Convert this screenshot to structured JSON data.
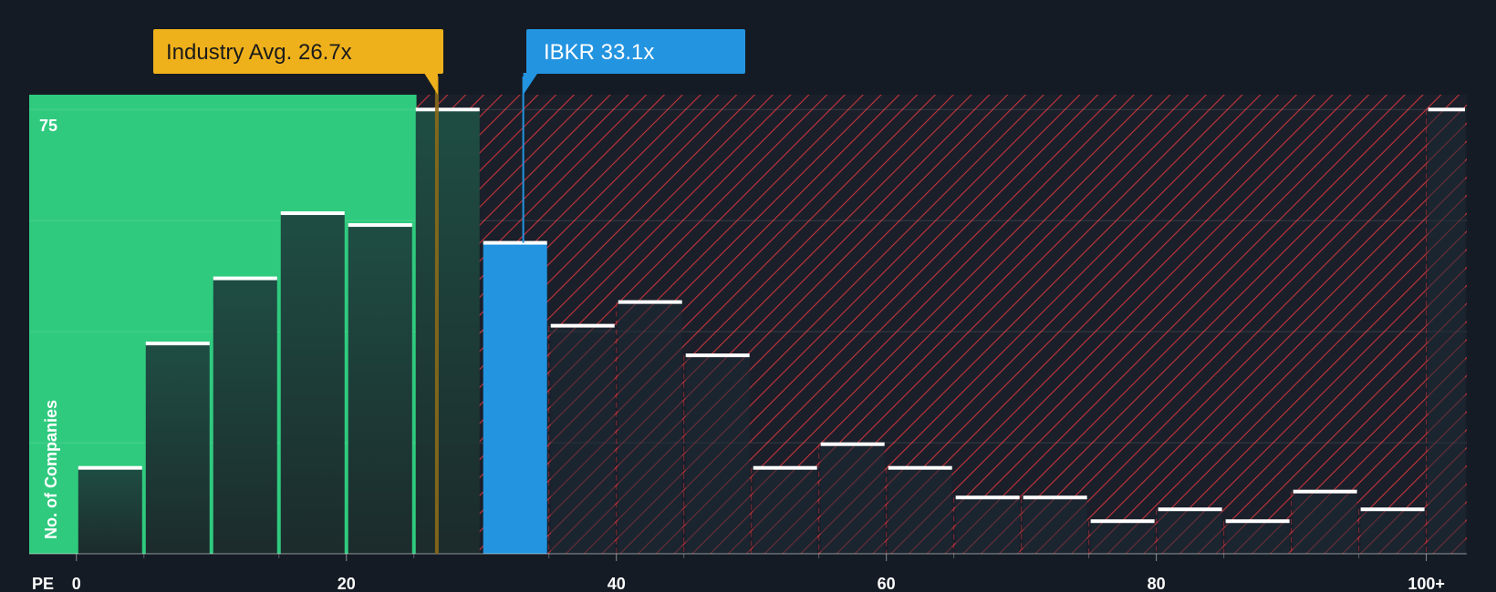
{
  "chart_data": {
    "type": "bar",
    "xlabel": "PE",
    "ylabel": "No. of Companies",
    "x_tick_labels": [
      "0",
      "20",
      "40",
      "60",
      "80",
      "100+"
    ],
    "x_ticks": [
      0,
      20,
      40,
      60,
      80,
      100
    ],
    "xlim": [
      -3.5,
      103
    ],
    "y_tick_label": "75",
    "y_ticks": [
      0,
      18.75,
      37.5,
      56.25,
      75
    ],
    "ylim": [
      0,
      77.5
    ],
    "bins": [
      {
        "x0": 0,
        "x1": 5,
        "value": 14.5
      },
      {
        "x0": 5,
        "x1": 10,
        "value": 35.5
      },
      {
        "x0": 10,
        "x1": 15,
        "value": 46.5
      },
      {
        "x0": 15,
        "x1": 20,
        "value": 57.5
      },
      {
        "x0": 20,
        "x1": 25,
        "value": 55.5
      },
      {
        "x0": 25,
        "x1": 30,
        "value": 75
      },
      {
        "x0": 30,
        "x1": 35,
        "value": 52.5,
        "highlight": true
      },
      {
        "x0": 35,
        "x1": 40,
        "value": 38.5
      },
      {
        "x0": 40,
        "x1": 45,
        "value": 42.5
      },
      {
        "x0": 45,
        "x1": 50,
        "value": 33.5
      },
      {
        "x0": 50,
        "x1": 55,
        "value": 14.5
      },
      {
        "x0": 55,
        "x1": 60,
        "value": 18.5
      },
      {
        "x0": 60,
        "x1": 65,
        "value": 14.5
      },
      {
        "x0": 65,
        "x1": 70,
        "value": 9.5
      },
      {
        "x0": 70,
        "x1": 75,
        "value": 9.5
      },
      {
        "x0": 75,
        "x1": 80,
        "value": 5.5
      },
      {
        "x0": 80,
        "x1": 85,
        "value": 7.5
      },
      {
        "x0": 85,
        "x1": 90,
        "value": 5.5
      },
      {
        "x0": 90,
        "x1": 95,
        "value": 10.5
      },
      {
        "x0": 95,
        "x1": 100,
        "value": 7.5
      },
      {
        "x0": 100,
        "x1": 103,
        "value": 75
      }
    ],
    "industry_avg": {
      "label": "Industry Avg. 26.7x",
      "value": 26.7
    },
    "company": {
      "label": "IBKR 33.1x",
      "value": 33.1
    },
    "colors": {
      "background": "#151b24",
      "fair_zone": "#2fca7e",
      "bar_dark": "#1e4a41",
      "bar_highlight": "#2394e0",
      "overvalued_stripe": "#c8343a",
      "industry_callout": "#efb11b",
      "company_callout": "#2394e0",
      "bar_cap": "#ffffff"
    }
  }
}
